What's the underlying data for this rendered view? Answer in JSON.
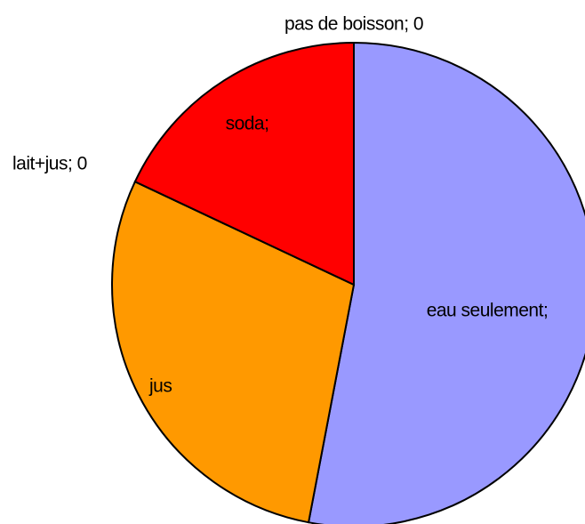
{
  "chart_data": {
    "type": "pie",
    "categories": [
      "eau seulement",
      "jus",
      "lait+jus",
      "soda",
      "pas de boisson"
    ],
    "values": [
      53,
      29,
      0,
      18,
      0
    ],
    "labels": [
      "eau seulement;",
      "jus",
      "lait+jus; 0",
      "soda;",
      "pas de boisson; 0"
    ],
    "colors": [
      "#9999ff",
      "#ff9900",
      null,
      "#ff0000",
      null
    ],
    "start_angle": 0,
    "direction": "clockwise"
  }
}
